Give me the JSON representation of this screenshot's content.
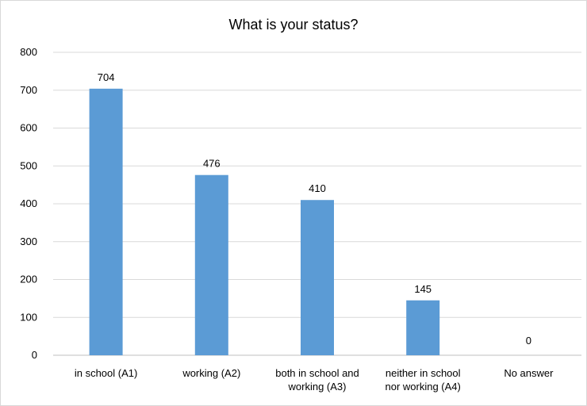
{
  "chart_data": {
    "type": "bar",
    "title": "What is your status?",
    "categories": [
      [
        "in school (A1)"
      ],
      [
        "working (A2)"
      ],
      [
        "both in school and",
        "working (A3)"
      ],
      [
        "neither in school",
        "nor working (A4)"
      ],
      [
        "No answer"
      ]
    ],
    "values": [
      704,
      476,
      410,
      145,
      0
    ],
    "data_labels": [
      "704",
      "476",
      "410",
      "145",
      "0"
    ],
    "y_ticks": [
      "0",
      "100",
      "200",
      "300",
      "400",
      "500",
      "600",
      "700",
      "800"
    ],
    "ylim": [
      0,
      800
    ],
    "grid": "horizontal",
    "legend": "none",
    "bar_color": "#5b9bd5",
    "grid_color": "#d9d9d9"
  }
}
